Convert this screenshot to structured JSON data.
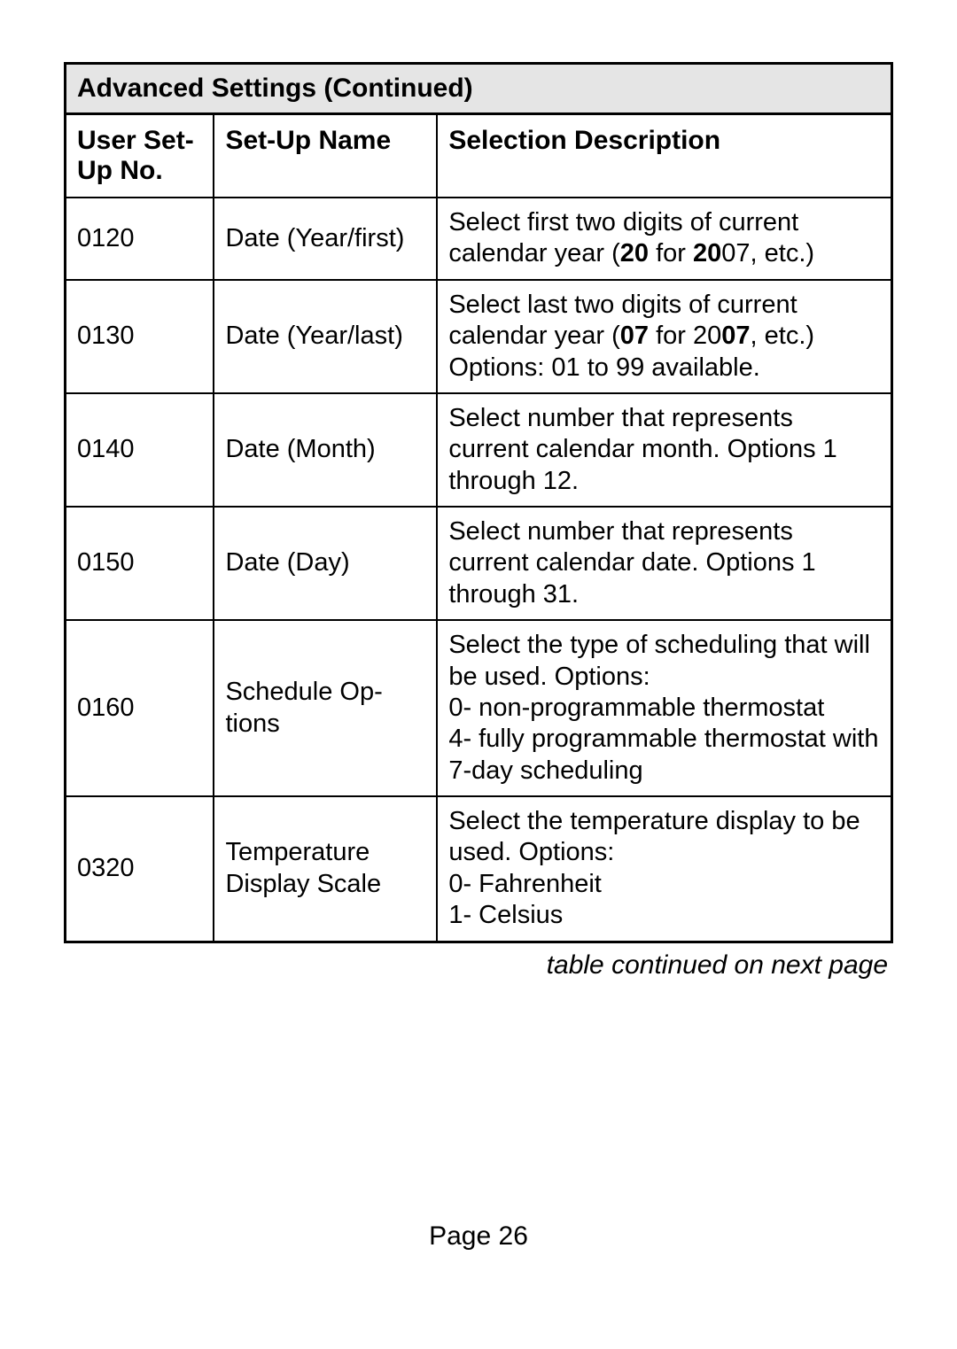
{
  "table": {
    "title": "Advanced Settings (Continued)",
    "columns": [
      "User Set-Up No.",
      "Set-Up Name",
      "Selection Description"
    ],
    "caption": "table continued on next page",
    "col_widths_pct": [
      18,
      27,
      55
    ],
    "border_color": "#000000",
    "header_bg": "#e5e5e5",
    "font_size_header": 30,
    "font_size_body": 29,
    "rows": [
      {
        "no": "0120",
        "name": "Date (Year/first)",
        "desc_html": "Select first two digits of current calendar year (<b>20</b> for <b>20</b>07, etc.)"
      },
      {
        "no": "0130",
        "name": "Date (Year/last)",
        "desc_html": "Select last two digits of current calendar year (<b>07</b> for 20<b>07</b>, etc.) Options: 01 to 99 available."
      },
      {
        "no": "0140",
        "name": "Date (Month)",
        "desc_html": "Select number that represents current calendar month. Options 1 through 12."
      },
      {
        "no": "0150",
        "name": "Date (Day)",
        "desc_html": "Select number that represents current calendar date. Options 1 through 31."
      },
      {
        "no": "0160",
        "name": "Schedule Op-tions",
        "desc_html": "Select the type of scheduling that will be used. Options:<br>0- non-programmable thermostat<br>4- fully programmable thermostat with 7-day scheduling"
      },
      {
        "no": "0320",
        "name": "Temperature Display Scale",
        "desc_html": "Select the temperature display to be used. Options:<br>0- Fahrenheit<br>1- Celsius"
      }
    ]
  },
  "page_number": "Page 26"
}
